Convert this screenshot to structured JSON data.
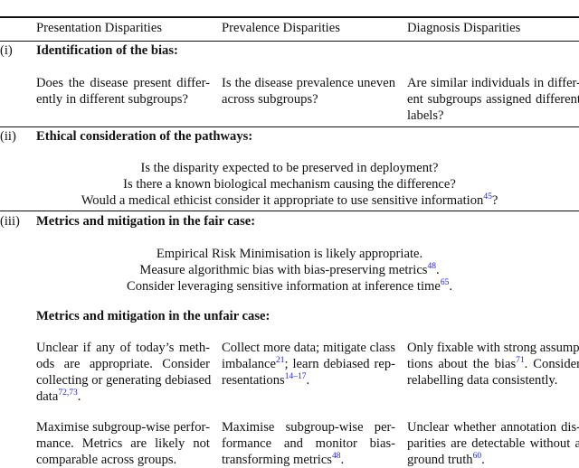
{
  "header": {
    "col1": "Presentation Disparities",
    "col2": "Prevalence Disparities",
    "col3": "Diagnosis Disparities"
  },
  "section_i": {
    "label": "(i)",
    "title": "Identification of the bias:",
    "cells": [
      [
        [
          {
            "t": "Does the disease present differ-"
          }
        ],
        [
          {
            "t": "ently in different subgroups?"
          }
        ]
      ],
      [
        [
          {
            "t": "Is the disease prevalence uneven"
          }
        ],
        [
          {
            "t": "across subgroups?"
          }
        ]
      ],
      [
        [
          {
            "t": "Are similar individuals in differ-"
          }
        ],
        [
          {
            "t": "ent subgroups assigned different"
          }
        ],
        [
          {
            "t": "labels?"
          }
        ]
      ]
    ]
  },
  "section_ii": {
    "label": "(ii)",
    "title": "Ethical consideration of the pathways:",
    "lines": [
      [
        {
          "t": "Is the disparity expected to be preserved in deployment?"
        }
      ],
      [
        {
          "t": "Is there a known biological mechanism causing the difference?"
        }
      ],
      [
        {
          "t": "Would a medical ethicist consider it appropriate to use sensitive information"
        },
        {
          "s": "45"
        },
        {
          "t": "?"
        }
      ]
    ]
  },
  "section_iii": {
    "label": "(iii)",
    "title": "Metrics and mitigation in the fair case:",
    "lines": [
      [
        {
          "t": "Empirical Risk Minimisation is likely appropriate."
        }
      ],
      [
        {
          "t": "Measure algorithmic bias with bias-preserving metrics"
        },
        {
          "s": "48"
        },
        {
          "t": "."
        }
      ],
      [
        {
          "t": "Consider leveraging sensitive information at inference time"
        },
        {
          "s": "65"
        },
        {
          "t": "."
        }
      ]
    ],
    "unfair_title": "Metrics and mitigation in the unfair case:",
    "mitigation_cells": [
      [
        [
          {
            "t": "Unclear if any of today’s meth-"
          }
        ],
        [
          {
            "t": "ods are appropriate.  Consider"
          }
        ],
        [
          {
            "t": "collecting or generating debiased"
          }
        ],
        [
          {
            "t": "data"
          },
          {
            "s": "72,73"
          },
          {
            "t": "."
          }
        ]
      ],
      [
        [
          {
            "t": "Collect more data; mitigate class"
          }
        ],
        [
          {
            "t": "imbalance"
          },
          {
            "s": "21"
          },
          {
            "t": "; learn debiased rep-"
          }
        ],
        [
          {
            "t": "resentations"
          },
          {
            "s": "14–17"
          },
          {
            "t": "."
          }
        ]
      ],
      [
        [
          {
            "t": "Only fixable with strong assump-"
          }
        ],
        [
          {
            "t": "tions about the bias"
          },
          {
            "s": "71"
          },
          {
            "t": ". Consider"
          }
        ],
        [
          {
            "t": "relabelling data consistently."
          }
        ]
      ]
    ],
    "metric_cells": [
      [
        [
          {
            "t": "Maximise subgroup-wise perfor-"
          }
        ],
        [
          {
            "t": "mance.  Metrics are likely not"
          }
        ],
        [
          {
            "t": "comparable across groups."
          }
        ]
      ],
      [
        [
          {
            "t": "Maximise  subgroup-wise  per-"
          }
        ],
        [
          {
            "t": "formance  and  monitor  bias-"
          }
        ],
        [
          {
            "t": "transforming metrics"
          },
          {
            "s": "48"
          },
          {
            "t": "."
          }
        ]
      ],
      [
        [
          {
            "t": "Unclear whether annotation dis-"
          }
        ],
        [
          {
            "t": "parities are detectable without a"
          }
        ],
        [
          {
            "t": "ground truth"
          },
          {
            "s": "60"
          },
          {
            "t": "."
          }
        ]
      ]
    ]
  },
  "colors": {
    "citation": "#1a1aff",
    "text": "#111111"
  }
}
